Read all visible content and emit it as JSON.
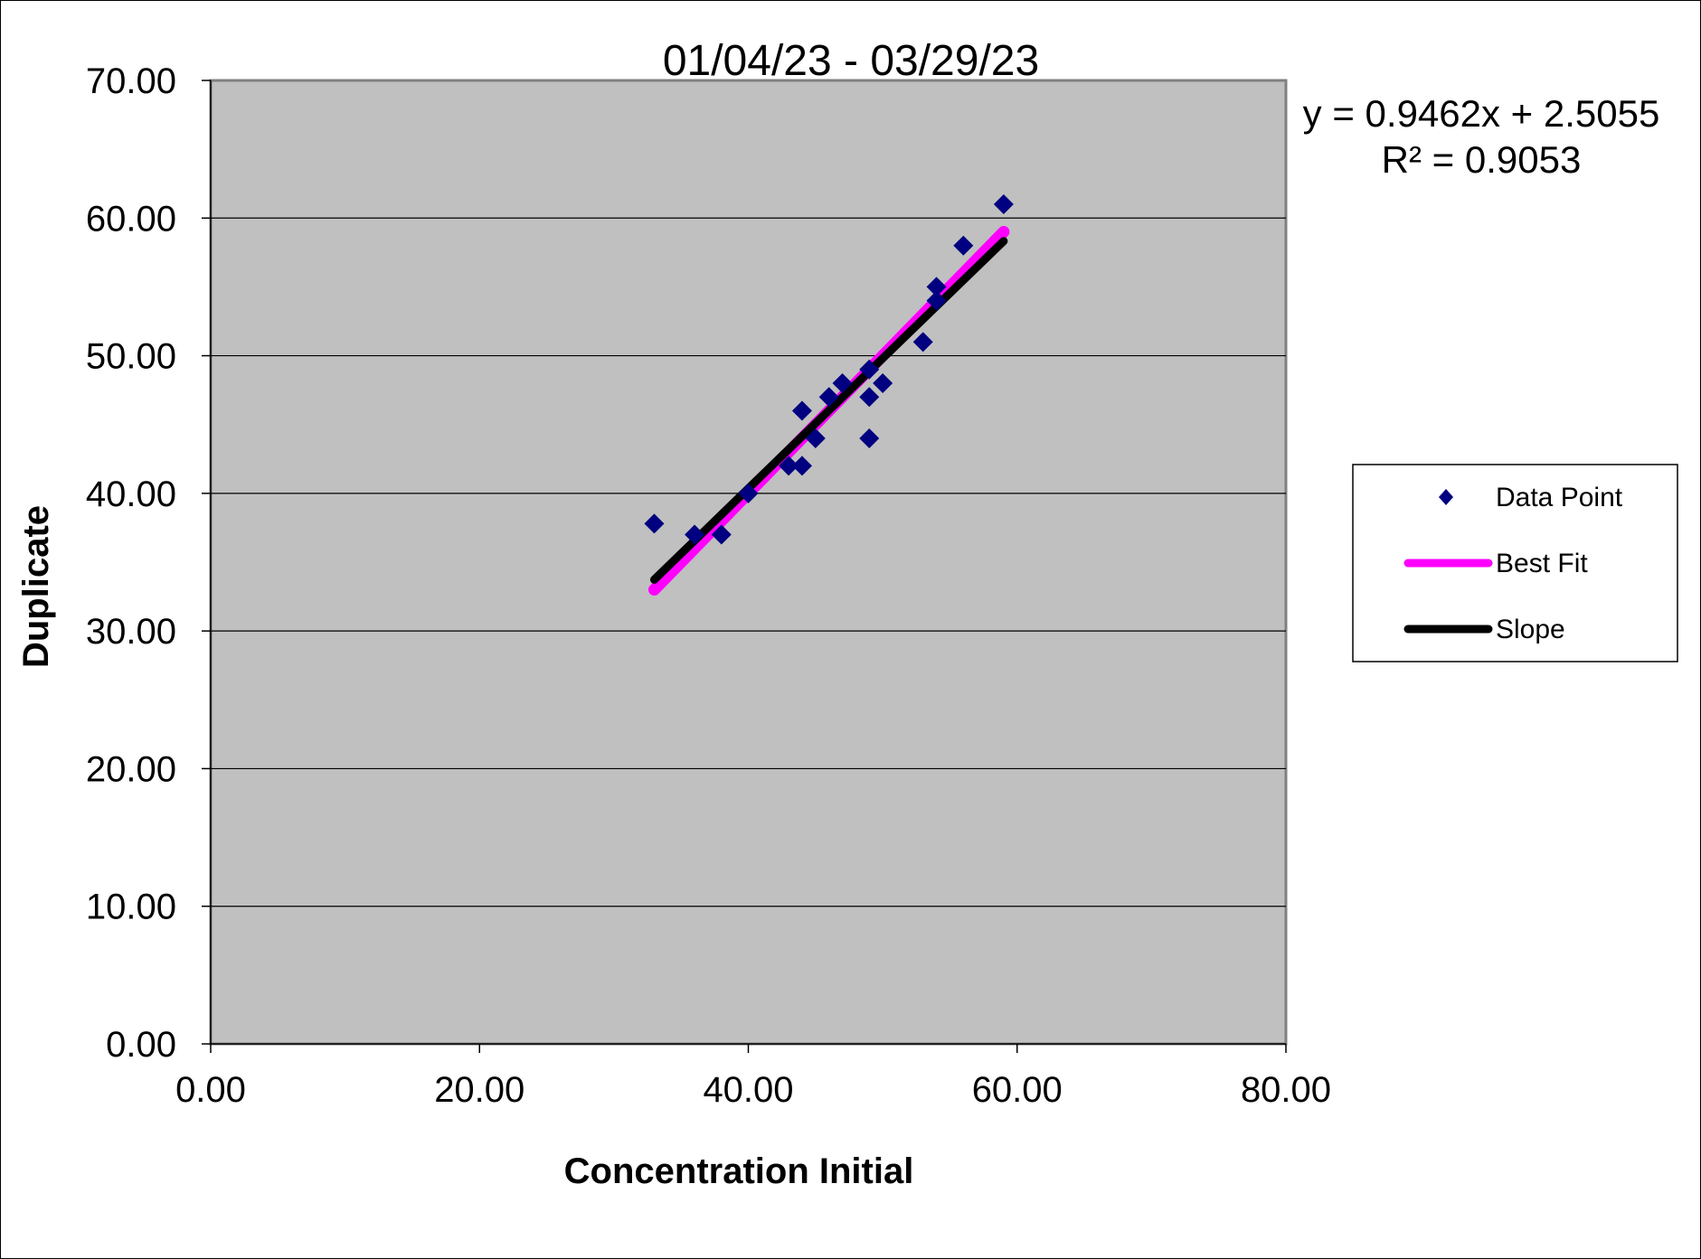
{
  "chart_data": {
    "type": "scatter",
    "title": "01/04/23 - 03/29/23",
    "xlabel": "Concentration Initial",
    "ylabel": "Duplicate",
    "xlim": [
      0,
      80
    ],
    "ylim": [
      0,
      70
    ],
    "x_ticks": [
      "0.00",
      "20.00",
      "40.00",
      "60.00",
      "80.00"
    ],
    "y_ticks": [
      "0.00",
      "10.00",
      "20.00",
      "30.00",
      "40.00",
      "50.00",
      "60.00",
      "70.00"
    ],
    "x_tick_values": [
      0,
      20,
      40,
      60,
      80
    ],
    "y_tick_values": [
      0,
      10,
      20,
      30,
      40,
      50,
      60,
      70
    ],
    "grid": "horizontal major gridlines",
    "plot_background": "#c0c0c0",
    "legend_position": "right",
    "series": [
      {
        "name": "Data Point",
        "kind": "markers",
        "marker": "diamond",
        "color": "#000080",
        "points": [
          [
            33,
            37.8
          ],
          [
            36,
            37
          ],
          [
            38,
            37
          ],
          [
            40,
            40
          ],
          [
            43,
            42
          ],
          [
            44,
            42
          ],
          [
            44,
            46
          ],
          [
            45,
            44
          ],
          [
            46,
            47
          ],
          [
            47,
            48
          ],
          [
            49,
            49
          ],
          [
            49,
            47
          ],
          [
            49,
            44
          ],
          [
            50,
            48
          ],
          [
            53,
            51
          ],
          [
            54,
            54
          ],
          [
            54,
            55
          ],
          [
            56,
            58
          ],
          [
            59,
            61
          ]
        ]
      },
      {
        "name": "Best Fit",
        "kind": "line",
        "color": "#ff00ff",
        "points": [
          [
            33,
            33
          ],
          [
            59,
            59
          ]
        ]
      },
      {
        "name": "Slope",
        "kind": "line",
        "color": "#000000",
        "points": [
          [
            33,
            33.73
          ],
          [
            59,
            58.33
          ]
        ]
      }
    ],
    "annotation": {
      "equation": "y = 0.9462x + 2.5055",
      "r_squared": "R² = 0.9053"
    }
  }
}
